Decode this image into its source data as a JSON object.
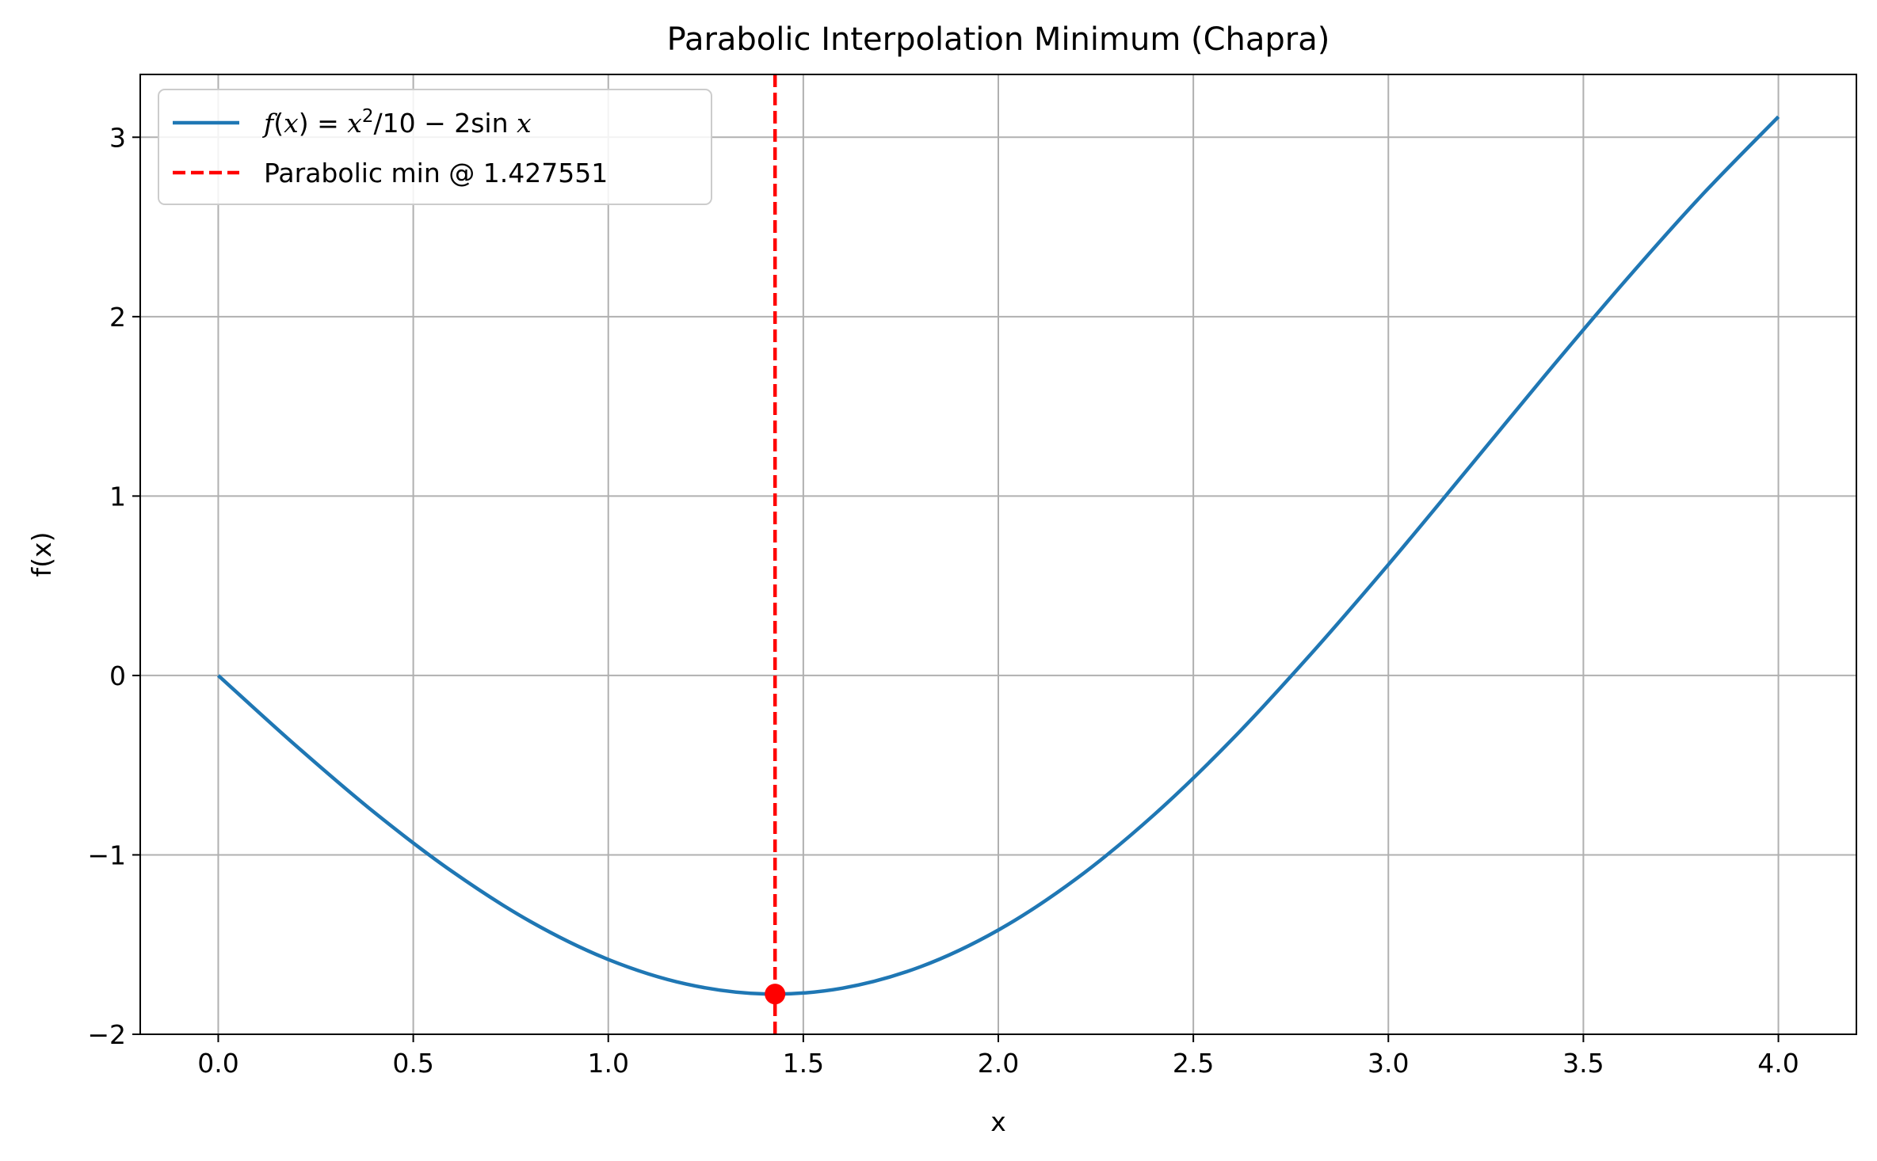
{
  "chart_data": {
    "type": "line",
    "title": "Parabolic Interpolation Minimum (Chapra)",
    "xlabel": "x",
    "ylabel": "f(x)",
    "xlim": [
      -0.2,
      4.2
    ],
    "ylim": [
      -2.0,
      3.35
    ],
    "grid": true,
    "legend_position": "top-left",
    "x_ticks": [
      0.0,
      0.5,
      1.0,
      1.5,
      2.0,
      2.5,
      3.0,
      3.5,
      4.0
    ],
    "x_tick_labels": [
      "0.0",
      "0.5",
      "1.0",
      "1.5",
      "2.0",
      "2.5",
      "3.0",
      "3.5",
      "4.0"
    ],
    "y_ticks": [
      -2,
      -1,
      0,
      1,
      2,
      3
    ],
    "y_tick_labels": [
      "−2",
      "−1",
      "0",
      "1",
      "2",
      "3"
    ],
    "series": [
      {
        "name": "f(x) = x²/10 − 2sin x",
        "color": "#1f77b4",
        "x": [
          0.0,
          0.2,
          0.4,
          0.6,
          0.8,
          1.0,
          1.2,
          1.4,
          1.6,
          1.8,
          2.0,
          2.2,
          2.4,
          2.6,
          2.8,
          3.0,
          3.2,
          3.4,
          3.6,
          3.8,
          4.0
        ],
        "y": [
          0.0,
          -0.393,
          -0.763,
          -1.093,
          -1.371,
          -1.583,
          -1.72,
          -1.775,
          -1.743,
          -1.624,
          -1.419,
          -1.133,
          -0.775,
          -0.355,
          0.116,
          0.618,
          1.141,
          1.668,
          2.181,
          2.668,
          3.114
        ]
      }
    ],
    "vline": {
      "name": "Parabolic min @ 1.427551",
      "x": 1.427551,
      "color": "#ff0000",
      "style": "dashed"
    },
    "marker": {
      "x": 1.427551,
      "y": -1.7757,
      "color": "#ff0000"
    }
  }
}
